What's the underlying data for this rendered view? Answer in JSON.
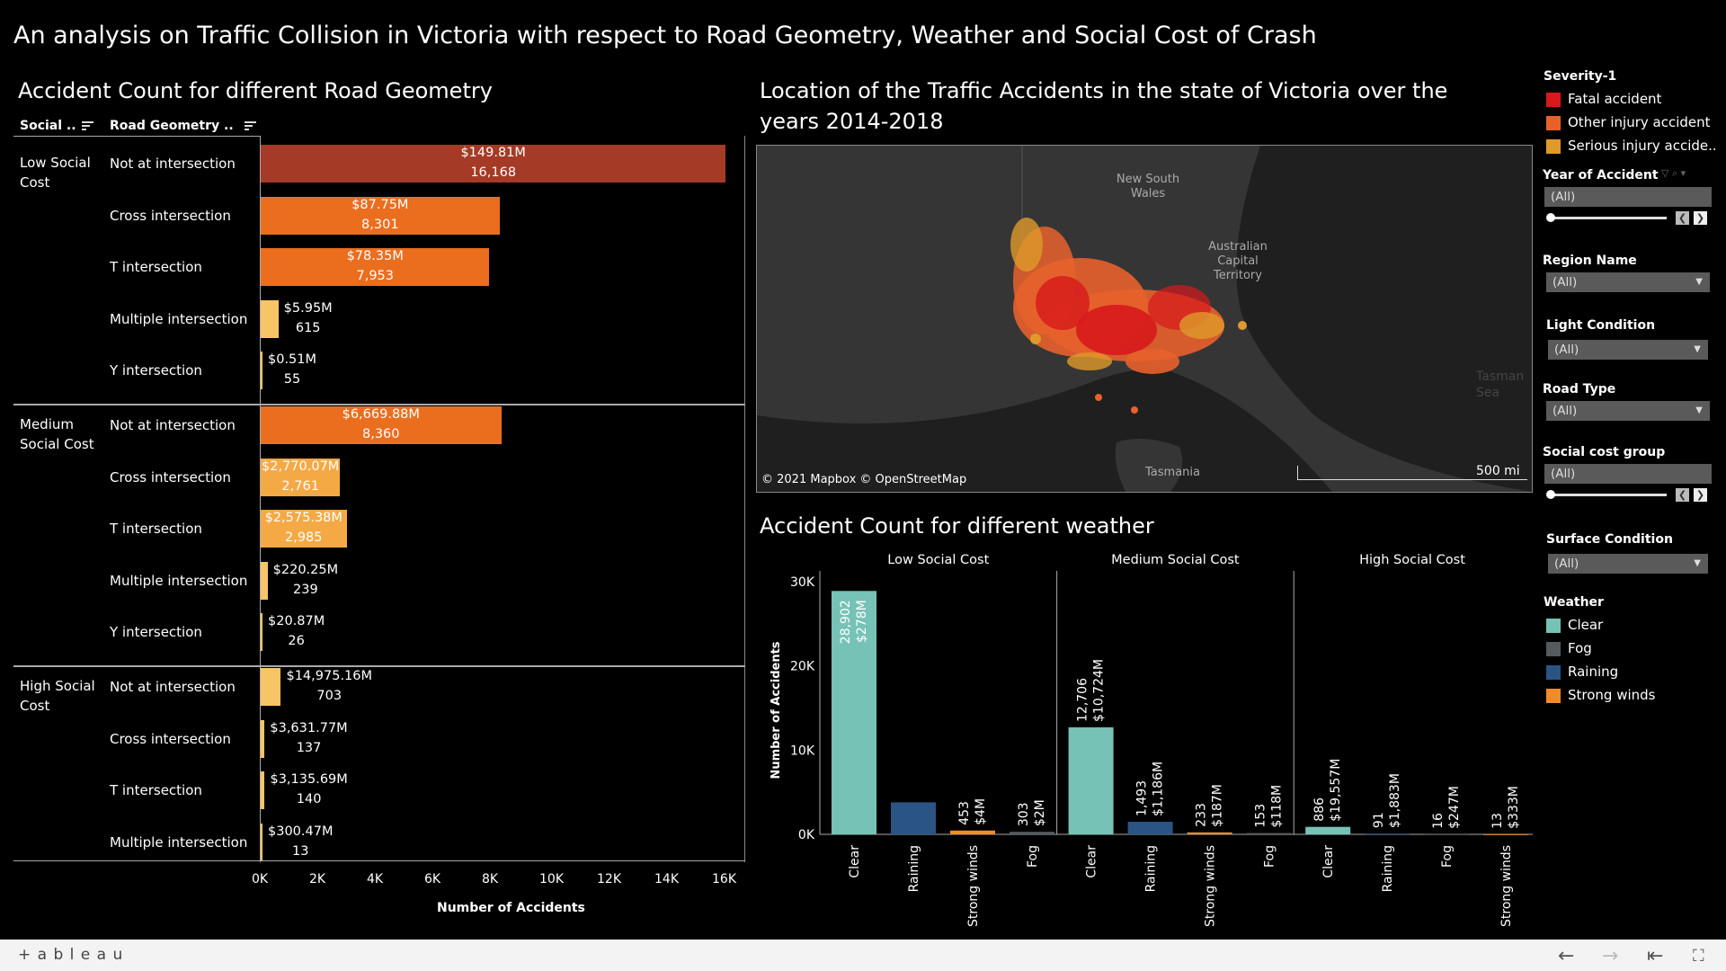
{
  "page_title": "An analysis on Traffic Collision in Victoria with respect to Road Geometry, Weather and Social Cost of Crash",
  "geometry": {
    "title": "Accident Count for different Road Geometry",
    "header_social": "Social ..",
    "header_geometry": "Road Geometry ..",
    "axis_label": "Number of Accidents",
    "ticks": [
      "0K",
      "2K",
      "4K",
      "6K",
      "8K",
      "10K",
      "12K",
      "14K",
      "16K"
    ],
    "groups": [
      {
        "label": "Low Social Cost",
        "rows": [
          {
            "geometry": "Not at intersection",
            "cost": "$149.81M",
            "count": "16,168",
            "value": 16168,
            "color": "#a53a26"
          },
          {
            "geometry": "Cross intersection",
            "cost": "$87.75M",
            "count": "8,301",
            "value": 8301,
            "color": "#eb6e1f"
          },
          {
            "geometry": "T intersection",
            "cost": "$78.35M",
            "count": "7,953",
            "value": 7953,
            "color": "#eb6e1f"
          },
          {
            "geometry": "Multiple intersection",
            "cost": "$5.95M",
            "count": "615",
            "value": 615,
            "color": "#f7c466"
          },
          {
            "geometry": "Y intersection",
            "cost": "$0.51M",
            "count": "55",
            "value": 55,
            "color": "#f7c466"
          }
        ]
      },
      {
        "label": "Medium Social Cost",
        "rows": [
          {
            "geometry": "Not at intersection",
            "cost": "$6,669.88M",
            "count": "8,360",
            "value": 8360,
            "color": "#eb6e1f"
          },
          {
            "geometry": "Cross intersection",
            "cost": "$2,770.07M",
            "count": "2,761",
            "value": 2761,
            "color": "#f5a945"
          },
          {
            "geometry": "T intersection",
            "cost": "$2,575.38M",
            "count": "2,985",
            "value": 2985,
            "color": "#f5a945"
          },
          {
            "geometry": "Multiple intersection",
            "cost": "$220.25M",
            "count": "239",
            "value": 239,
            "color": "#f7c466"
          },
          {
            "geometry": "Y intersection",
            "cost": "$20.87M",
            "count": "26",
            "value": 26,
            "color": "#f7c466"
          }
        ]
      },
      {
        "label": "High Social Cost",
        "rows": [
          {
            "geometry": "Not at intersection",
            "cost": "$14,975.16M",
            "count": "703",
            "value": 703,
            "color": "#f7c466"
          },
          {
            "geometry": "Cross intersection",
            "cost": "$3,631.77M",
            "count": "137",
            "value": 137,
            "color": "#f7c466"
          },
          {
            "geometry": "T intersection",
            "cost": "$3,135.69M",
            "count": "140",
            "value": 140,
            "color": "#f7c466"
          },
          {
            "geometry": "Multiple intersection",
            "cost": "$300.47M",
            "count": "13",
            "value": 13,
            "color": "#f7c466"
          }
        ]
      }
    ]
  },
  "map": {
    "title": "Location of the Traffic Accidents in the state of Victoria over the years 2014-2018",
    "labels": {
      "nsw": "New South Wales",
      "act": "Australian Capital Territory",
      "tas": "Tasmania",
      "sea": "Tasman Sea"
    },
    "scale": "500 mi",
    "attribution": "© 2021 Mapbox © OpenStreetMap"
  },
  "weather": {
    "title": "Accident Count for different weather",
    "ylabel": "Number of Accidents",
    "yticks": [
      "30K",
      "20K",
      "10K",
      "0K"
    ],
    "panels": [
      {
        "label": "Low Social Cost",
        "bars": [
          {
            "x": "Clear",
            "value": 28902,
            "count": "28,902",
            "cost": "$278M",
            "color": "#77c2b6"
          },
          {
            "x": "Raining",
            "value": 3800,
            "count": "",
            "cost": "",
            "color": "#2a5483"
          },
          {
            "x": "Strong winds",
            "value": 453,
            "count": "453",
            "cost": "$4M",
            "color": "#f08b2b"
          },
          {
            "x": "Fog",
            "value": 303,
            "count": "303",
            "cost": "$2M",
            "color": "#555a5e"
          }
        ]
      },
      {
        "label": "Medium Social Cost",
        "bars": [
          {
            "x": "Clear",
            "value": 12706,
            "count": "12,706",
            "cost": "$10,724M",
            "color": "#77c2b6"
          },
          {
            "x": "Raining",
            "value": 1493,
            "count": "1,493",
            "cost": "$1,186M",
            "color": "#2a5483"
          },
          {
            "x": "Strong winds",
            "value": 233,
            "count": "233",
            "cost": "$187M",
            "color": "#f08b2b"
          },
          {
            "x": "Fog",
            "value": 153,
            "count": "153",
            "cost": "$118M",
            "color": "#555a5e"
          }
        ]
      },
      {
        "label": "High Social Cost",
        "bars": [
          {
            "x": "Clear",
            "value": 886,
            "count": "886",
            "cost": "$19,557M",
            "color": "#77c2b6"
          },
          {
            "x": "Raining",
            "value": 91,
            "count": "91",
            "cost": "$1,883M",
            "color": "#2a5483"
          },
          {
            "x": "Fog",
            "value": 16,
            "count": "16",
            "cost": "$247M",
            "color": "#555a5e"
          },
          {
            "x": "Strong winds",
            "value": 13,
            "count": "13",
            "cost": "$333M",
            "color": "#f08b2b"
          }
        ]
      }
    ]
  },
  "chart_data": [
    {
      "type": "bar",
      "title": "Accident Count for different Road Geometry",
      "xlabel": "Number of Accidents",
      "xlim": [
        0,
        16000
      ],
      "categories": [
        "Low Social Cost / Not at intersection",
        "Low Social Cost / Cross intersection",
        "Low Social Cost / T intersection",
        "Low Social Cost / Multiple intersection",
        "Low Social Cost / Y intersection",
        "Medium Social Cost / Not at intersection",
        "Medium Social Cost / Cross intersection",
        "Medium Social Cost / T intersection",
        "Medium Social Cost / Multiple intersection",
        "Medium Social Cost / Y intersection",
        "High Social Cost / Not at intersection",
        "High Social Cost / Cross intersection",
        "High Social Cost / T intersection",
        "High Social Cost / Multiple intersection"
      ],
      "values": [
        16168,
        8301,
        7953,
        615,
        55,
        8360,
        2761,
        2985,
        239,
        26,
        703,
        137,
        140,
        13
      ]
    },
    {
      "type": "bar",
      "title": "Accident Count for different weather",
      "ylabel": "Number of Accidents",
      "ylim": [
        0,
        30000
      ],
      "series": [
        {
          "name": "Low Social Cost",
          "categories": [
            "Clear",
            "Raining",
            "Strong winds",
            "Fog"
          ],
          "values": [
            28902,
            3800,
            453,
            303
          ]
        },
        {
          "name": "Medium Social Cost",
          "categories": [
            "Clear",
            "Raining",
            "Strong winds",
            "Fog"
          ],
          "values": [
            12706,
            1493,
            233,
            153
          ]
        },
        {
          "name": "High Social Cost",
          "categories": [
            "Clear",
            "Raining",
            "Fog",
            "Strong winds"
          ],
          "values": [
            886,
            91,
            16,
            13
          ]
        }
      ]
    }
  ],
  "legend_severity": {
    "title": "Severity-1",
    "items": [
      {
        "label": "Fatal accident",
        "color": "#d7191c"
      },
      {
        "label": "Other injury accident",
        "color": "#e8612c"
      },
      {
        "label": "Serious injury accide..",
        "color": "#e09a2b"
      }
    ]
  },
  "filters": {
    "year": {
      "label": "Year of Accident",
      "value": "(All)"
    },
    "region": {
      "label": "Region Name",
      "value": "(All)"
    },
    "light": {
      "label": "Light Condition",
      "value": "(All)"
    },
    "road_type": {
      "label": "Road Type",
      "value": "(All)"
    },
    "social_cost": {
      "label": "Social cost group",
      "value": "(All)"
    },
    "surface": {
      "label": "Surface Condition",
      "value": "(All)"
    }
  },
  "legend_weather": {
    "title": "Weather",
    "items": [
      {
        "label": "Clear",
        "color": "#77c2b6"
      },
      {
        "label": "Fog",
        "color": "#555a5e"
      },
      {
        "label": "Raining",
        "color": "#2a5483"
      },
      {
        "label": "Strong winds",
        "color": "#f08b2b"
      }
    ]
  },
  "footer": {
    "brand": "+ a b l e a u"
  }
}
